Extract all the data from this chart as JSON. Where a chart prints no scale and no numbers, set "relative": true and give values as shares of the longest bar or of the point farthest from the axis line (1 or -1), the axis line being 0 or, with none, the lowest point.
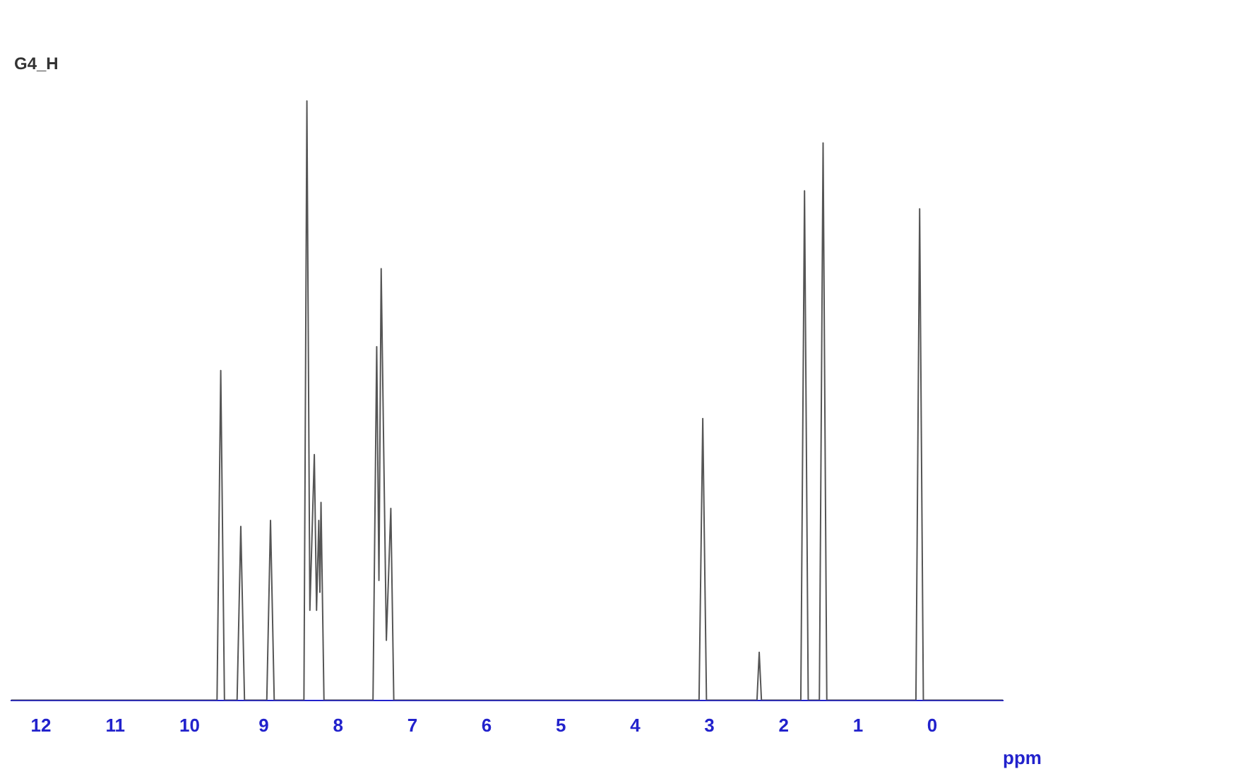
{
  "chart_data": {
    "type": "line",
    "title": "G4_H",
    "xlabel": "ppm",
    "relative": true,
    "grid": false,
    "legend": false,
    "marker": "none",
    "line_style": "solid",
    "xlim": [
      12.4,
      -0.95
    ],
    "xticks": [
      12,
      11,
      10,
      9,
      8,
      7,
      6,
      5,
      4,
      3,
      2,
      1,
      0
    ],
    "series": [
      {
        "color": "#555555",
        "x": [
          12.4,
          9.63,
          9.58,
          9.53,
          9.36,
          9.31,
          9.26,
          8.96,
          8.91,
          8.86,
          8.46,
          8.42,
          8.38,
          8.32,
          8.29,
          8.26,
          8.245,
          8.23,
          8.19,
          7.53,
          7.48,
          7.45,
          7.42,
          7.35,
          7.29,
          7.25,
          3.14,
          3.09,
          3.04,
          2.36,
          2.33,
          2.3,
          1.77,
          1.72,
          1.67,
          1.52,
          1.47,
          1.42,
          0.22,
          0.17,
          0.12,
          -0.95
        ],
        "values": [
          0,
          0,
          0.55,
          0,
          0,
          0.29,
          0,
          0,
          0.3,
          0,
          0,
          1,
          0.15,
          0.41,
          0.15,
          0.3,
          0.18,
          0.33,
          0,
          0,
          0.59,
          0.2,
          0.72,
          0.1,
          0.32,
          0,
          0,
          0.47,
          0,
          0,
          0.08,
          0,
          0,
          0.85,
          0,
          0,
          0.93,
          0,
          0,
          0.82,
          0,
          0
        ]
      }
    ]
  }
}
